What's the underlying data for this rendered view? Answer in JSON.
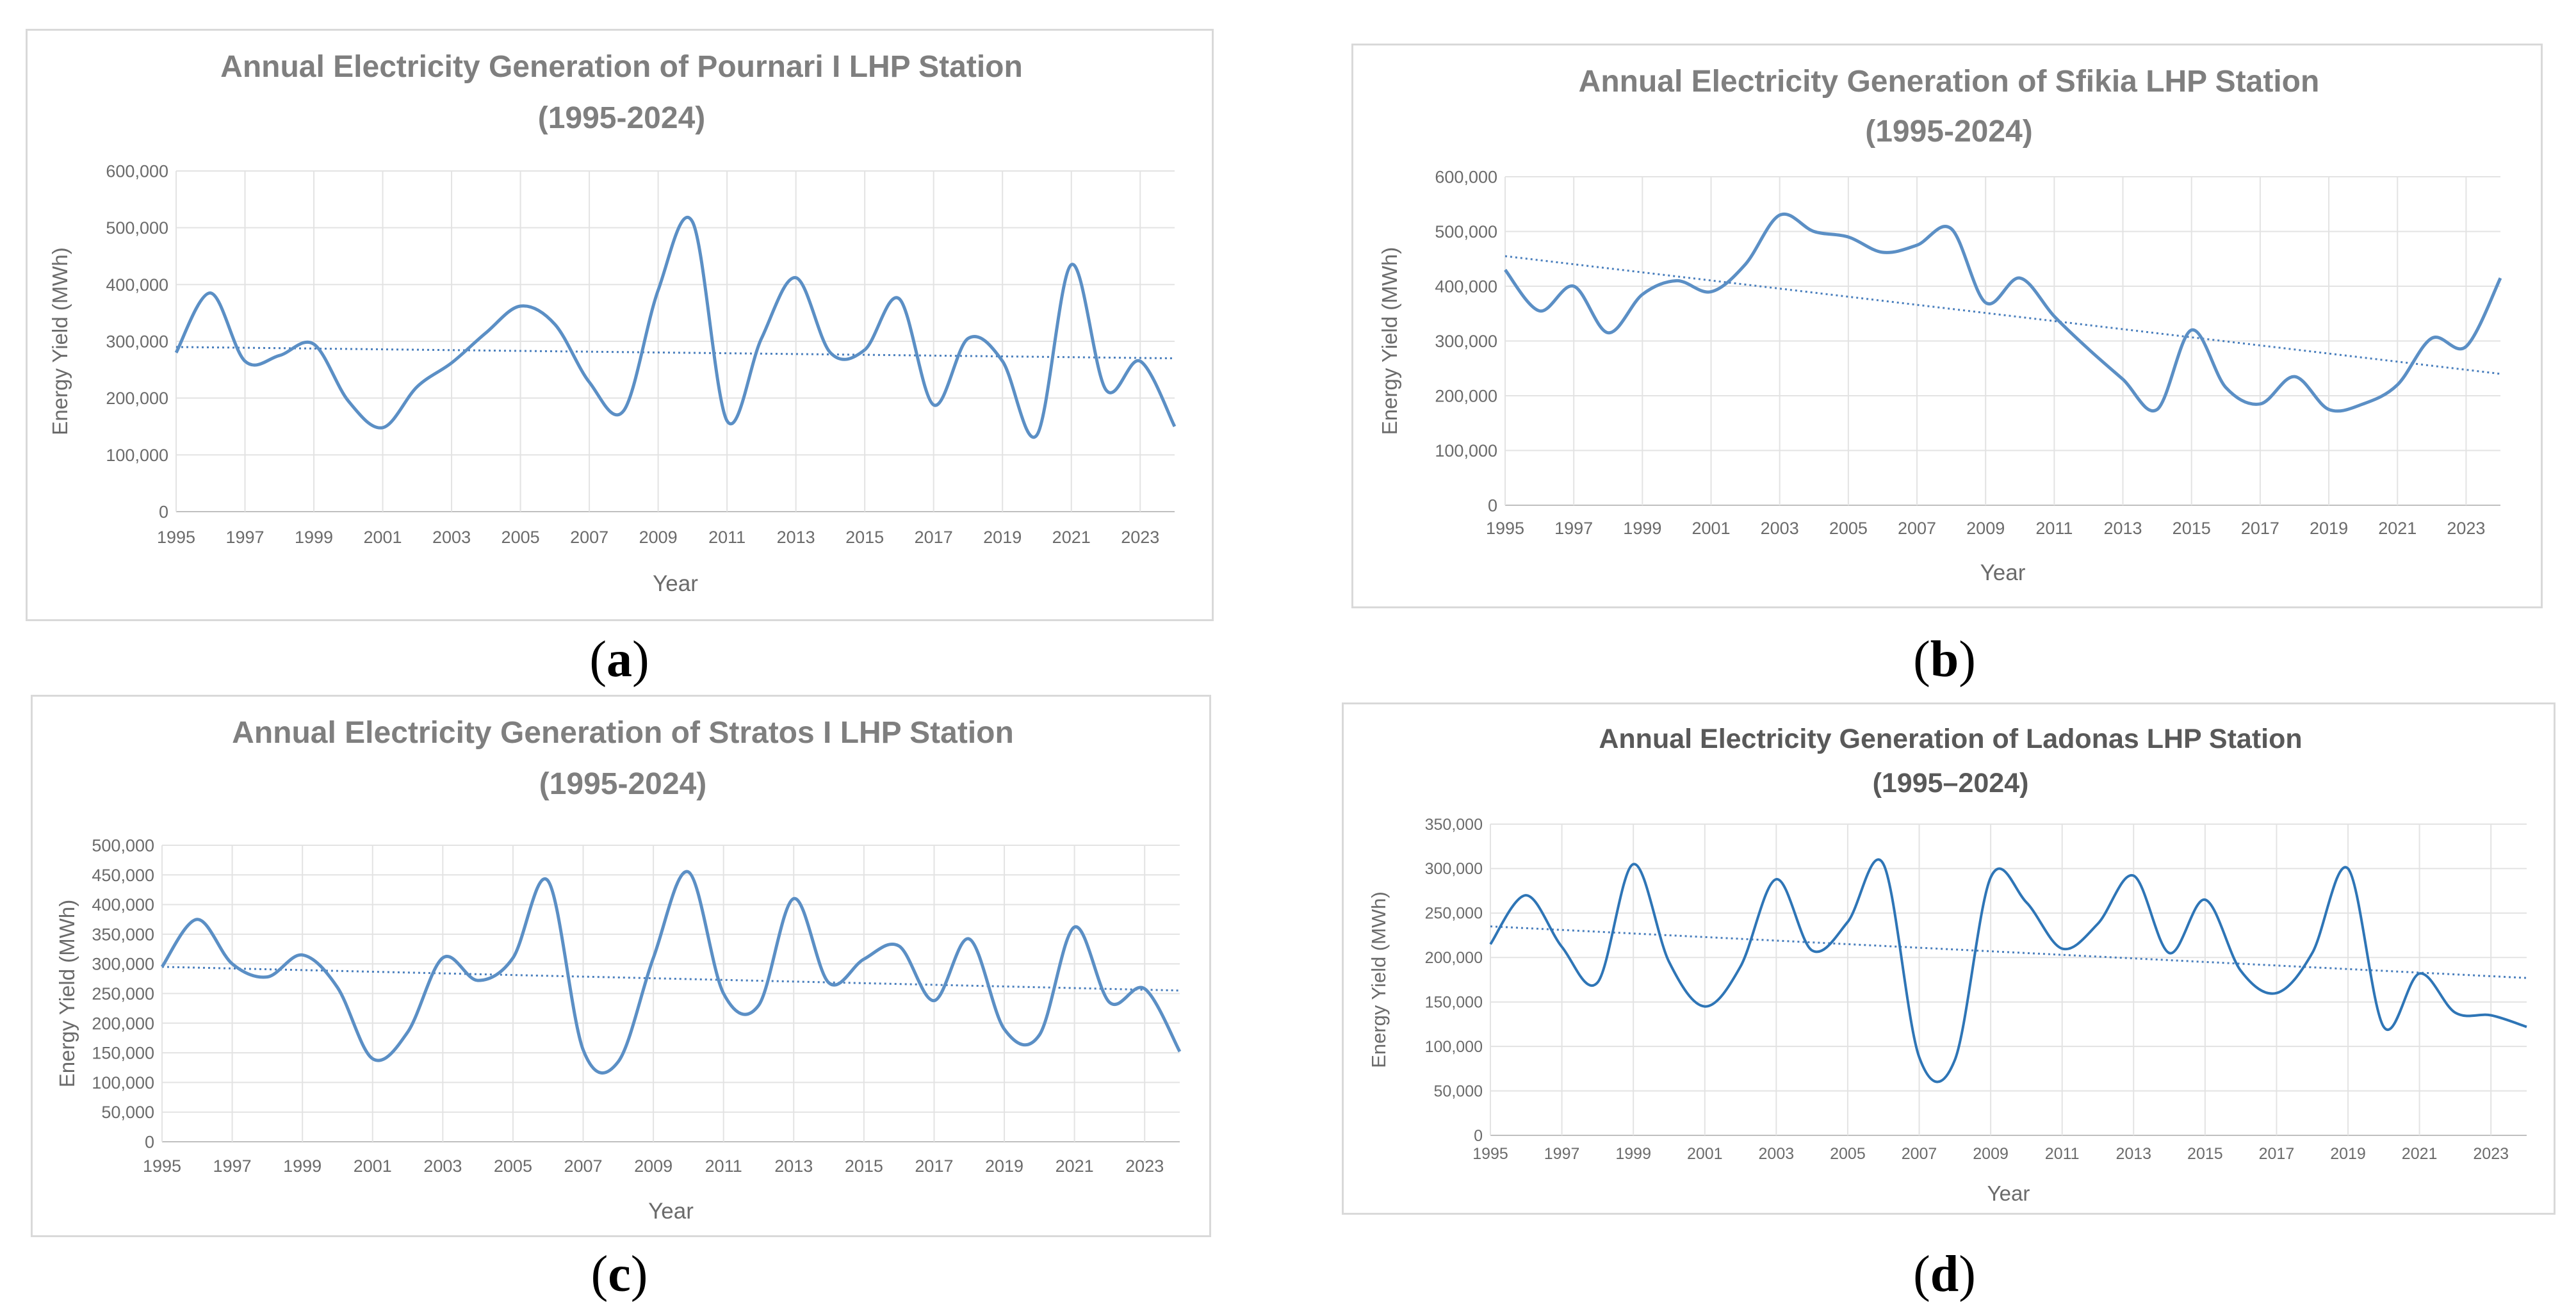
{
  "colors": {
    "line": "#5b8fc5",
    "line_d": "#2e75b6",
    "trend": "#4a7fbd",
    "grid": "#e3e3e3",
    "title": "#7f7f7f",
    "title_d": "#595959",
    "axis_text": "#6b6b6b"
  },
  "chart_data": [
    {
      "type": "line",
      "panel_label": "a",
      "title": "Annual Electricity Generation of Pournari I LHP Station",
      "subtitle": "(1995-2024)",
      "xlabel": "Year",
      "ylabel": "Energy Yield (MWh)",
      "ylim": [
        0,
        600000
      ],
      "yticks": [
        "0",
        "100,000",
        "200,000",
        "300,000",
        "400,000",
        "500,000",
        "600,000"
      ],
      "xticks": [
        "1995",
        "1997",
        "1999",
        "2001",
        "2003",
        "2005",
        "2007",
        "2009",
        "2011",
        "2013",
        "2015",
        "2017",
        "2019",
        "2021",
        "2023"
      ],
      "trendline": [
        290000,
        270000
      ],
      "series": [
        {
          "name": "Energy Yield",
          "x": [
            1995,
            1996,
            1997,
            1998,
            1999,
            2000,
            2001,
            2002,
            2003,
            2004,
            2005,
            2006,
            2007,
            2008,
            2009,
            2010,
            2011,
            2012,
            2013,
            2014,
            2015,
            2016,
            2017,
            2018,
            2019,
            2020,
            2021,
            2022,
            2023,
            2024
          ],
          "values": [
            280000,
            385000,
            265000,
            275000,
            295000,
            195000,
            148000,
            220000,
            262000,
            315000,
            362000,
            330000,
            228000,
            178000,
            390000,
            510000,
            160000,
            305000,
            412000,
            280000,
            285000,
            375000,
            188000,
            305000,
            265000,
            135000,
            435000,
            215000,
            265000,
            150000
          ]
        }
      ]
    },
    {
      "type": "line",
      "panel_label": "b",
      "title": "Annual Electricity Generation of Sfikia LHP Station",
      "subtitle": "(1995-2024)",
      "xlabel": "Year",
      "ylabel": "Energy Yield (MWh)",
      "ylim": [
        0,
        600000
      ],
      "yticks": [
        "0",
        "100,000",
        "200,000",
        "300,000",
        "400,000",
        "500,000",
        "600,000"
      ],
      "xticks": [
        "1995",
        "1997",
        "1999",
        "2001",
        "2003",
        "2005",
        "2007",
        "2009",
        "2011",
        "2013",
        "2015",
        "2017",
        "2019",
        "2021",
        "2023"
      ],
      "trendline": [
        455000,
        240000
      ],
      "series": [
        {
          "name": "Energy Yield",
          "x": [
            1995,
            1996,
            1997,
            1998,
            1999,
            2000,
            2001,
            2002,
            2003,
            2004,
            2005,
            2006,
            2007,
            2008,
            2009,
            2010,
            2011,
            2012,
            2013,
            2014,
            2015,
            2016,
            2017,
            2018,
            2019,
            2020,
            2021,
            2022,
            2023,
            2024
          ],
          "values": [
            430000,
            355000,
            400000,
            315000,
            385000,
            410000,
            390000,
            440000,
            530000,
            500000,
            490000,
            462000,
            475000,
            505000,
            370000,
            415000,
            345000,
            285000,
            230000,
            175000,
            320000,
            215000,
            185000,
            235000,
            175000,
            185000,
            220000,
            305000,
            290000,
            415000
          ]
        }
      ]
    },
    {
      "type": "line",
      "panel_label": "c",
      "title": "Annual Electricity Generation of Stratos I LHP Station",
      "subtitle": "(1995-2024)",
      "xlabel": "Year",
      "ylabel": "Energy Yield (MWh)",
      "ylim": [
        0,
        500000
      ],
      "yticks": [
        "0",
        "50,000",
        "100,000",
        "150,000",
        "200,000",
        "250,000",
        "300,000",
        "350,000",
        "400,000",
        "450,000",
        "500,000"
      ],
      "xticks": [
        "1995",
        "1997",
        "1999",
        "2001",
        "2003",
        "2005",
        "2007",
        "2009",
        "2011",
        "2013",
        "2015",
        "2017",
        "2019",
        "2021",
        "2023"
      ],
      "trendline": [
        295000,
        255000
      ],
      "series": [
        {
          "name": "Energy Yield",
          "x": [
            1995,
            1996,
            1997,
            1998,
            1999,
            2000,
            2001,
            2002,
            2003,
            2004,
            2005,
            2006,
            2007,
            2008,
            2009,
            2010,
            2011,
            2012,
            2013,
            2014,
            2015,
            2016,
            2017,
            2018,
            2019,
            2020,
            2021,
            2022,
            2023,
            2024
          ],
          "values": [
            295000,
            375000,
            300000,
            278000,
            315000,
            260000,
            140000,
            185000,
            310000,
            272000,
            310000,
            440000,
            155000,
            135000,
            310000,
            455000,
            250000,
            230000,
            410000,
            268000,
            308000,
            330000,
            238000,
            342000,
            190000,
            180000,
            362000,
            235000,
            258000,
            152000
          ]
        }
      ]
    },
    {
      "type": "line",
      "panel_label": "d",
      "title": "Annual Electricity Generation of Ladonas LHP Station",
      "subtitle": "(1995–2024)",
      "xlabel": "Year",
      "ylabel": "Energy Yield (MWh)",
      "ylim": [
        0,
        350000
      ],
      "yticks": [
        "0",
        "50,000",
        "100,000",
        "150,000",
        "200,000",
        "250,000",
        "300,000",
        "350,000"
      ],
      "xticks": [
        "1995",
        "1997",
        "1999",
        "2001",
        "2003",
        "2005",
        "2007",
        "2009",
        "2011",
        "2013",
        "2015",
        "2017",
        "2019",
        "2021",
        "2023"
      ],
      "trendline": [
        235000,
        177000
      ],
      "series": [
        {
          "name": "Energy Yield",
          "x": [
            1995,
            1996,
            1997,
            1998,
            1999,
            2000,
            2001,
            2002,
            2003,
            2004,
            2005,
            2006,
            2007,
            2008,
            2009,
            2010,
            2011,
            2012,
            2013,
            2014,
            2015,
            2016,
            2017,
            2018,
            2019,
            2020,
            2021,
            2022,
            2023,
            2024
          ],
          "values": [
            215000,
            270000,
            212000,
            172000,
            305000,
            195000,
            145000,
            190000,
            288000,
            208000,
            240000,
            305000,
            88000,
            85000,
            290000,
            262000,
            210000,
            238000,
            292000,
            205000,
            265000,
            185000,
            160000,
            205000,
            300000,
            122000,
            182000,
            138000,
            135000,
            122000
          ]
        }
      ]
    }
  ]
}
